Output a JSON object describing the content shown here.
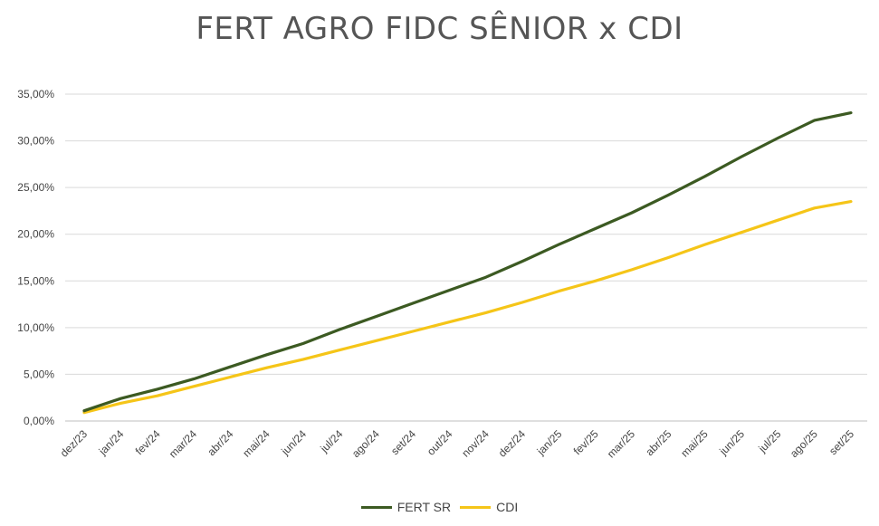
{
  "chart_data": {
    "type": "line",
    "title": "FERT AGRO FIDC SÊNIOR x CDI",
    "xlabel": "",
    "ylabel": "",
    "ylim": [
      0,
      35
    ],
    "yticks": [
      "0,00%",
      "5,00%",
      "10,00%",
      "15,00%",
      "20,00%",
      "25,00%",
      "30,00%",
      "35,00%"
    ],
    "grid": true,
    "legend_position": "bottom",
    "categories": [
      "dez/23",
      "jan/24",
      "fev/24",
      "mar/24",
      "abr/24",
      "mai/24",
      "jun/24",
      "jul/24",
      "ago/24",
      "set/24",
      "out/24",
      "nov/24",
      "dez/24",
      "jan/25",
      "fev/25",
      "mar/25",
      "abr/25",
      "mai/25",
      "jun/25",
      "jul/25",
      "ago/25",
      "set/25"
    ],
    "series": [
      {
        "name": "FERT SR",
        "color": "#3c5a22",
        "values": [
          1.1,
          2.4,
          3.4,
          4.5,
          5.8,
          7.1,
          8.3,
          9.8,
          11.2,
          12.6,
          14.0,
          15.4,
          17.1,
          18.9,
          20.6,
          22.3,
          24.2,
          26.2,
          28.3,
          30.3,
          32.2,
          33.0
        ]
      },
      {
        "name": "CDI",
        "color": "#f5c518",
        "values": [
          0.9,
          1.9,
          2.7,
          3.7,
          4.7,
          5.7,
          6.6,
          7.6,
          8.6,
          9.6,
          10.6,
          11.6,
          12.7,
          13.9,
          15.0,
          16.2,
          17.5,
          18.9,
          20.2,
          21.5,
          22.8,
          23.5
        ]
      }
    ]
  }
}
